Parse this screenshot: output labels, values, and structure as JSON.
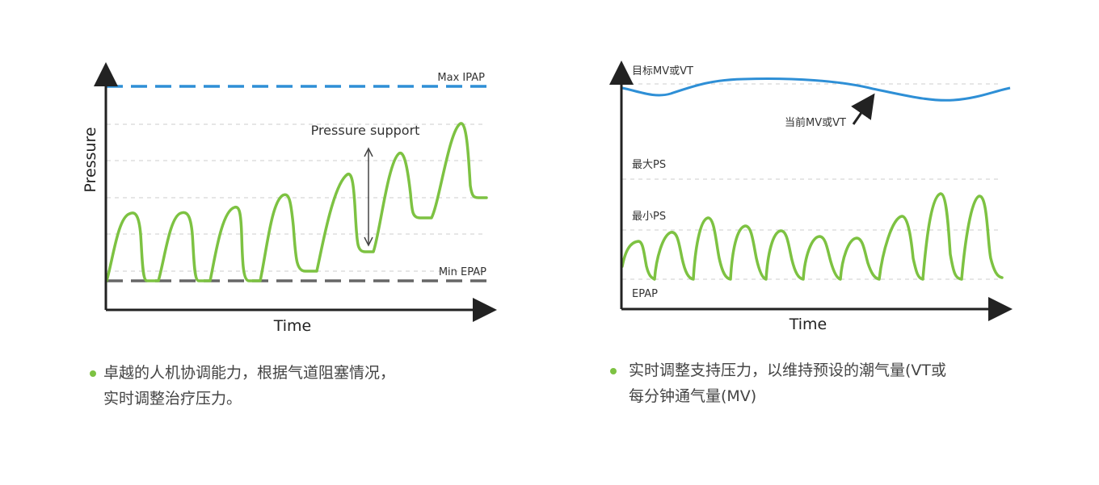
{
  "left_diagram": {
    "y_axis_label": "Pressure",
    "x_axis_label": "Time",
    "max_ipap_label": "Max IPAP",
    "min_epap_label": "Min EPAP",
    "pressure_support_label": "Pressure support",
    "caption_line1": "卓越的人机协调能力，根据气道阻塞情况，",
    "caption_line2": "实时调整治疗压力。"
  },
  "right_diagram": {
    "target_label": "目标MV或VT",
    "current_label": "当前MV或VT",
    "max_ps_label": "最大PS",
    "min_ps_label": "最小PS",
    "epap_label": "EPAP",
    "x_axis_label": "Time",
    "caption_line1": "实时调整支持压力，以维持预设的潮气量(VT或",
    "caption_line2": "每分钟通气量(MV)"
  },
  "colors": {
    "axis": "#222222",
    "waveform": "#7dc242",
    "max_ipap_line": "#2e8fd6",
    "min_epap_line": "#666666",
    "target_curve": "#2e8fd6",
    "gridline": "#cccccc",
    "bullet": "#7dc242"
  }
}
